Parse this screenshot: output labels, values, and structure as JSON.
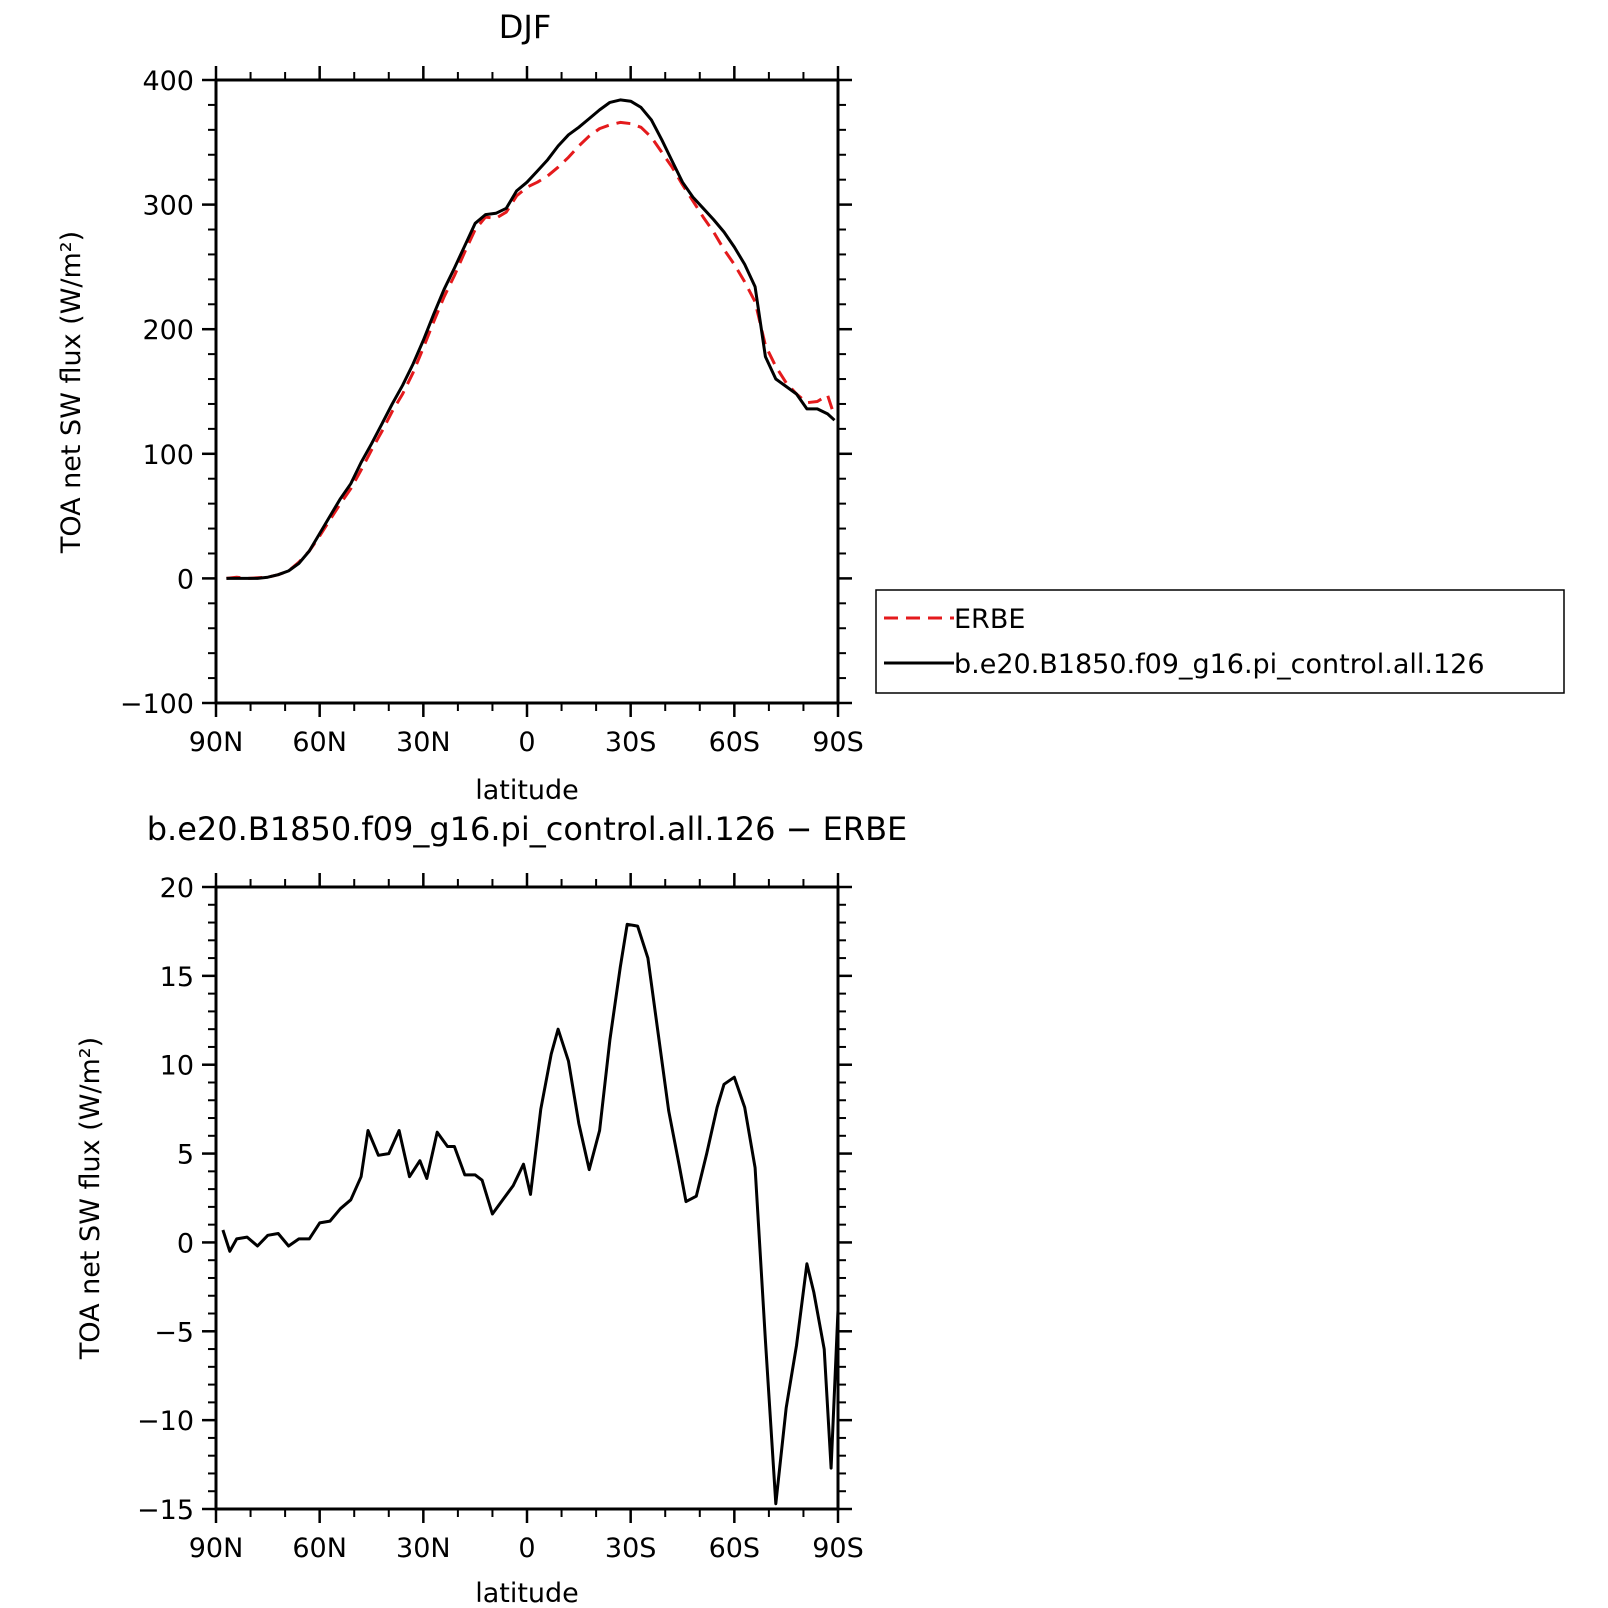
{
  "chart_data": [
    {
      "type": "line",
      "title": "DJF",
      "xlabel": "latitude",
      "ylabel": "TOA net SW flux (W/m²)",
      "xlim": [
        -90,
        90
      ],
      "ylim": [
        -100,
        400
      ],
      "xticks": [
        {
          "value": -90,
          "label": "90N"
        },
        {
          "value": -60,
          "label": "60N"
        },
        {
          "value": -30,
          "label": "30N"
        },
        {
          "value": 0,
          "label": "0"
        },
        {
          "value": 30,
          "label": "30S"
        },
        {
          "value": 60,
          "label": "60S"
        },
        {
          "value": 90,
          "label": "90S"
        }
      ],
      "yticks": [
        {
          "value": -100,
          "label": "−100"
        },
        {
          "value": 0,
          "label": "0"
        },
        {
          "value": 100,
          "label": "100"
        },
        {
          "value": 200,
          "label": "200"
        },
        {
          "value": 300,
          "label": "300"
        },
        {
          "value": 400,
          "label": "400"
        }
      ],
      "grid": false,
      "legend": {
        "placement": "right",
        "entries": [
          "ERBE",
          "b.e20.B1850.f09_g16.pi_control.all.126"
        ]
      },
      "series": [
        {
          "name": "ERBE",
          "color": "#e41a1c",
          "dash": "dashed",
          "points": [
            [
              -87,
              0
            ],
            [
              -84,
              1
            ],
            [
              -81,
              0
            ],
            [
              -78,
              0.5
            ],
            [
              -75,
              1
            ],
            [
              -72,
              3
            ],
            [
              -69,
              6
            ],
            [
              -66,
              13
            ],
            [
              -63,
              22
            ],
            [
              -60,
              34
            ],
            [
              -57,
              47
            ],
            [
              -54,
              60
            ],
            [
              -51,
              72
            ],
            [
              -48,
              87
            ],
            [
              -45,
              103
            ],
            [
              -42,
              118
            ],
            [
              -39,
              134
            ],
            [
              -36,
              148
            ],
            [
              -33,
              165
            ],
            [
              -30,
              185
            ],
            [
              -27,
              206
            ],
            [
              -24,
              226
            ],
            [
              -21,
              243
            ],
            [
              -18,
              262
            ],
            [
              -15,
              280
            ],
            [
              -12,
              290
            ],
            [
              -9,
              289
            ],
            [
              -6,
              294
            ],
            [
              -3,
              307
            ],
            [
              0,
              314
            ],
            [
              3,
              318
            ],
            [
              6,
              323
            ],
            [
              9,
              330
            ],
            [
              12,
              338
            ],
            [
              15,
              347
            ],
            [
              18,
              355
            ],
            [
              21,
              361
            ],
            [
              24,
              364
            ],
            [
              27,
              366
            ],
            [
              30,
              365
            ],
            [
              33,
              362
            ],
            [
              36,
              354
            ],
            [
              39,
              342
            ],
            [
              42,
              330
            ],
            [
              45,
              316
            ],
            [
              48,
              303
            ],
            [
              51,
              290
            ],
            [
              54,
              278
            ],
            [
              57,
              264
            ],
            [
              60,
              252
            ],
            [
              63,
              238
            ],
            [
              66,
              222
            ],
            [
              69,
              187
            ],
            [
              72,
              170
            ],
            [
              75,
              157
            ],
            [
              78,
              148
            ],
            [
              81,
              141
            ],
            [
              84,
              142
            ],
            [
              87,
              147
            ],
            [
              89,
              130
            ]
          ]
        },
        {
          "name": "b.e20.B1850.f09_g16.pi_control.all.126",
          "color": "#000000",
          "dash": "solid",
          "points": [
            [
              -87,
              0
            ],
            [
              -84,
              0
            ],
            [
              -81,
              0
            ],
            [
              -78,
              0
            ],
            [
              -75,
              1
            ],
            [
              -72,
              3
            ],
            [
              -69,
              6
            ],
            [
              -66,
              12
            ],
            [
              -63,
              22
            ],
            [
              -60,
              36
            ],
            [
              -57,
              50
            ],
            [
              -54,
              64
            ],
            [
              -51,
              76
            ],
            [
              -48,
              93
            ],
            [
              -45,
              108
            ],
            [
              -42,
              124
            ],
            [
              -39,
              140
            ],
            [
              -36,
              155
            ],
            [
              -33,
              172
            ],
            [
              -30,
              191
            ],
            [
              -27,
              212
            ],
            [
              -24,
              232
            ],
            [
              -21,
              249
            ],
            [
              -18,
              267
            ],
            [
              -15,
              285
            ],
            [
              -12,
              292
            ],
            [
              -9,
              293
            ],
            [
              -6,
              297
            ],
            [
              -3,
              311
            ],
            [
              0,
              318
            ],
            [
              3,
              327
            ],
            [
              6,
              336
            ],
            [
              9,
              347
            ],
            [
              12,
              356
            ],
            [
              15,
              362
            ],
            [
              18,
              369
            ],
            [
              21,
              376
            ],
            [
              24,
              382
            ],
            [
              27,
              384
            ],
            [
              30,
              383
            ],
            [
              33,
              378
            ],
            [
              36,
              368
            ],
            [
              39,
              352
            ],
            [
              42,
              335
            ],
            [
              45,
              318
            ],
            [
              48,
              306
            ],
            [
              51,
              297
            ],
            [
              54,
              288
            ],
            [
              57,
              278
            ],
            [
              60,
              266
            ],
            [
              63,
              252
            ],
            [
              66,
              234
            ],
            [
              69,
              178
            ],
            [
              72,
              160
            ],
            [
              75,
              154
            ],
            [
              78,
              148
            ],
            [
              81,
              136
            ],
            [
              84,
              136
            ],
            [
              87,
              132
            ],
            [
              89,
              127
            ]
          ]
        }
      ]
    },
    {
      "type": "line",
      "title": "b.e20.B1850.f09_g16.pi_control.all.126 − ERBE",
      "xlabel": "latitude",
      "ylabel": "TOA net SW flux (W/m²)",
      "xlim": [
        -90,
        90
      ],
      "ylim": [
        -15,
        20
      ],
      "xticks": [
        {
          "value": -90,
          "label": "90N"
        },
        {
          "value": -60,
          "label": "60N"
        },
        {
          "value": -30,
          "label": "30N"
        },
        {
          "value": 0,
          "label": "0"
        },
        {
          "value": 30,
          "label": "30S"
        },
        {
          "value": 60,
          "label": "60S"
        },
        {
          "value": 90,
          "label": "90S"
        }
      ],
      "yticks": [
        {
          "value": -15,
          "label": "−15"
        },
        {
          "value": -10,
          "label": "−10"
        },
        {
          "value": -5,
          "label": "−5"
        },
        {
          "value": 0,
          "label": "0"
        },
        {
          "value": 5,
          "label": "5"
        },
        {
          "value": 10,
          "label": "10"
        },
        {
          "value": 15,
          "label": "15"
        },
        {
          "value": 20,
          "label": "20"
        }
      ],
      "grid": false,
      "series": [
        {
          "color": "#000000",
          "dash": "solid",
          "points": [
            [
              -88,
              0.7
            ],
            [
              -86,
              -0.5
            ],
            [
              -84,
              0.2
            ],
            [
              -81,
              0.3
            ],
            [
              -78,
              -0.2
            ],
            [
              -75,
              0.4
            ],
            [
              -72,
              0.5
            ],
            [
              -69,
              -0.2
            ],
            [
              -66,
              0.2
            ],
            [
              -63,
              0.2
            ],
            [
              -60,
              1.1
            ],
            [
              -57,
              1.2
            ],
            [
              -54,
              1.9
            ],
            [
              -51,
              2.4
            ],
            [
              -48,
              3.7
            ],
            [
              -46,
              6.3
            ],
            [
              -43,
              4.9
            ],
            [
              -40,
              5.0
            ],
            [
              -37,
              6.3
            ],
            [
              -34,
              3.7
            ],
            [
              -31,
              4.6
            ],
            [
              -29,
              3.6
            ],
            [
              -26,
              6.2
            ],
            [
              -23,
              5.4
            ],
            [
              -21,
              5.4
            ],
            [
              -18,
              3.8
            ],
            [
              -15,
              3.8
            ],
            [
              -13,
              3.5
            ],
            [
              -10,
              1.6
            ],
            [
              -7,
              2.4
            ],
            [
              -4,
              3.2
            ],
            [
              -1,
              4.4
            ],
            [
              1,
              2.7
            ],
            [
              4,
              7.5
            ],
            [
              7,
              10.6
            ],
            [
              9,
              12.0
            ],
            [
              12,
              10.2
            ],
            [
              15,
              6.7
            ],
            [
              18,
              4.1
            ],
            [
              21,
              6.3
            ],
            [
              24,
              11.4
            ],
            [
              27,
              15.5
            ],
            [
              29,
              17.9
            ],
            [
              32,
              17.8
            ],
            [
              35,
              16.0
            ],
            [
              38,
              11.7
            ],
            [
              41,
              7.4
            ],
            [
              44,
              4.4
            ],
            [
              46,
              2.3
            ],
            [
              49,
              2.6
            ],
            [
              52,
              5.0
            ],
            [
              55,
              7.6
            ],
            [
              57,
              8.9
            ],
            [
              60,
              9.3
            ],
            [
              63,
              7.6
            ],
            [
              66,
              4.2
            ],
            [
              69,
              -5.5
            ],
            [
              72,
              -14.7
            ],
            [
              75,
              -9.3
            ],
            [
              78,
              -5.8
            ],
            [
              81,
              -1.2
            ],
            [
              83,
              -2.8
            ],
            [
              86,
              -6.0
            ],
            [
              88,
              -12.7
            ],
            [
              90,
              -3.8
            ]
          ]
        }
      ]
    }
  ]
}
